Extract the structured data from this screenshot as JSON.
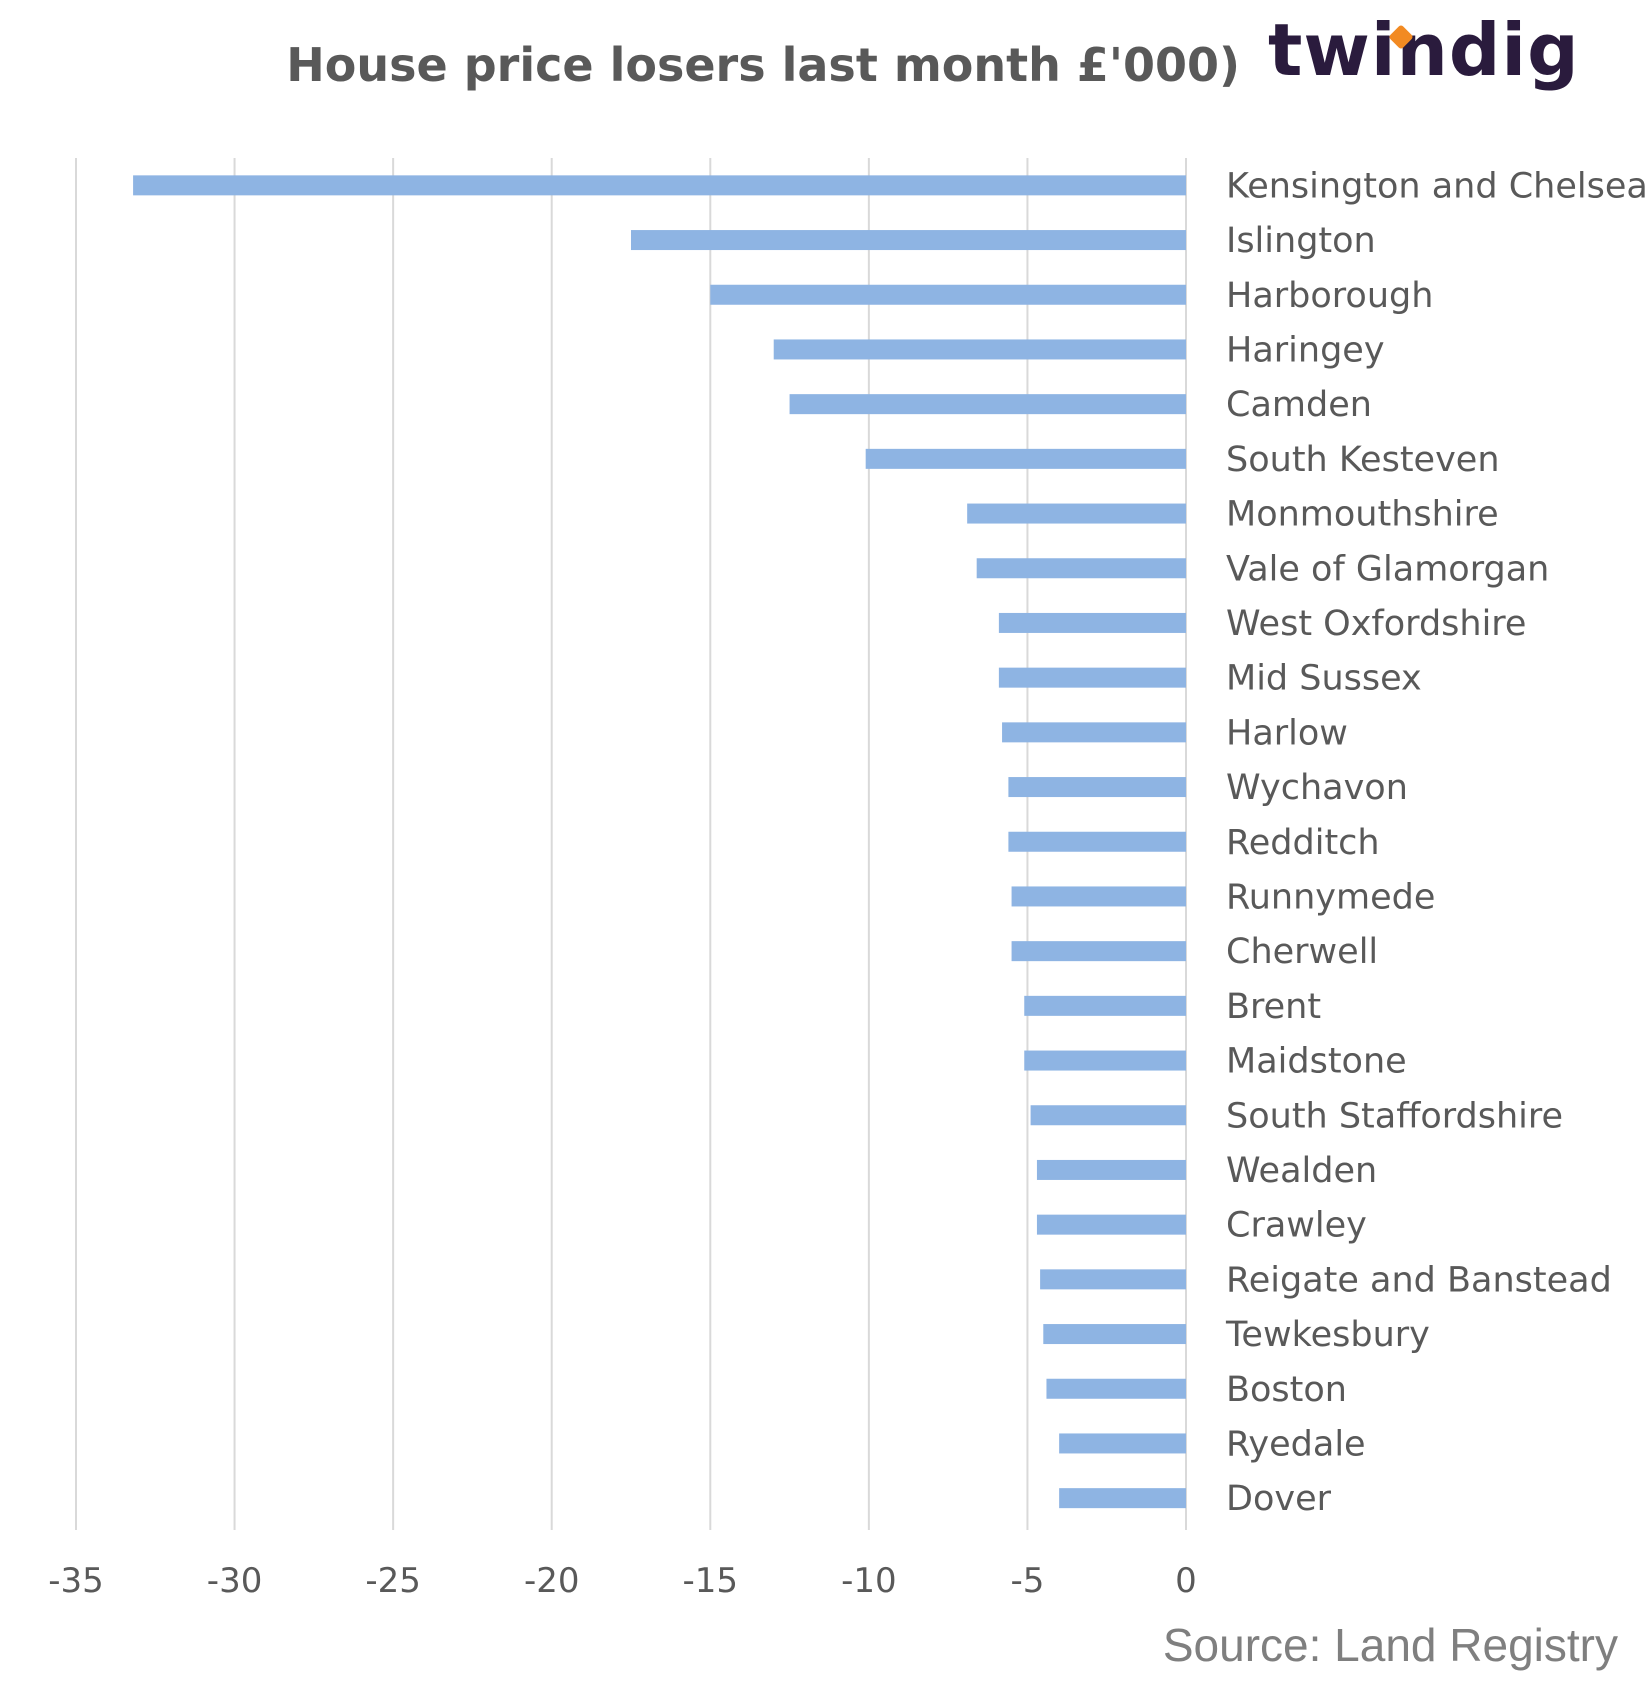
{
  "chart_data": {
    "type": "bar",
    "orientation": "horizontal",
    "title": "House price losers last month £'000)",
    "brand": "twindig",
    "source": "Source: Land Registry",
    "categories": [
      "Kensington and Chelsea",
      "Islington",
      "Harborough",
      "Haringey",
      "Camden",
      "South Kesteven",
      "Monmouthshire",
      "Vale of Glamorgan",
      "West Oxfordshire",
      "Mid Sussex",
      "Harlow",
      "Wychavon",
      "Redditch",
      "Runnymede",
      "Cherwell",
      "Brent",
      "Maidstone",
      "South Staffordshire",
      "Wealden",
      "Crawley",
      "Reigate and Banstead",
      "Tewkesbury",
      "Boston",
      "Ryedale",
      "Dover"
    ],
    "values": [
      -33.2,
      -17.5,
      -15.0,
      -13.0,
      -12.5,
      -10.1,
      -6.9,
      -6.6,
      -5.9,
      -5.9,
      -5.8,
      -5.6,
      -5.6,
      -5.5,
      -5.5,
      -5.1,
      -5.1,
      -4.9,
      -4.7,
      -4.7,
      -4.6,
      -4.5,
      -4.4,
      -4.0,
      -4.0
    ],
    "xlim": [
      -35,
      0
    ],
    "xticks": [
      "-35",
      "-30",
      "-25",
      "-20",
      "-15",
      "-10",
      "-5",
      "0"
    ],
    "xtick_values": [
      -35,
      -30,
      -25,
      -20,
      -15,
      -10,
      -5,
      0
    ],
    "xlabel": "",
    "ylabel": "",
    "grid": "vertical",
    "legend": "none",
    "colors": {
      "bar": "#8eb4e3",
      "grid": "#d9d9d9",
      "text": "#595959",
      "brand_text": "#2a1b3d",
      "brand_accent": "#f28a22"
    }
  }
}
